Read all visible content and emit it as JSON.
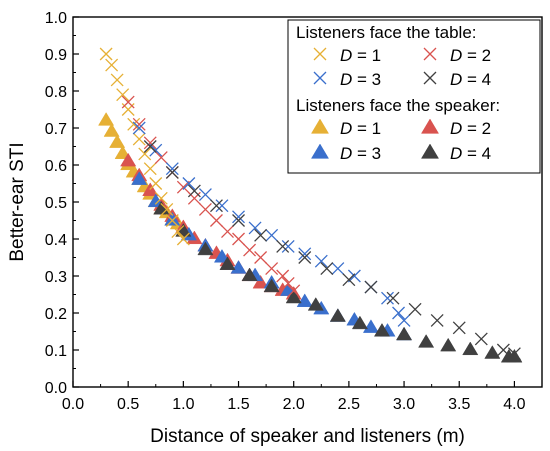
{
  "chart_data": {
    "type": "scatter",
    "xlabel": "Distance of speaker and listeners (m)",
    "ylabel": "Better-ear STI",
    "xlim": [
      0.0,
      4.25
    ],
    "ylim": [
      0.0,
      1.0
    ],
    "xticks": [
      "0.0",
      "0.5",
      "1.0",
      "1.5",
      "2.0",
      "2.5",
      "3.0",
      "3.5",
      "4.0"
    ],
    "yticks": [
      "0.0",
      "0.1",
      "0.2",
      "0.3",
      "0.4",
      "0.5",
      "0.6",
      "0.7",
      "0.8",
      "0.9",
      "1.0"
    ],
    "grid": false,
    "legend_position": "top-right",
    "legend": {
      "group1_title": "Listeners face the table:",
      "group2_title": "Listeners face the speaker:",
      "var": "D",
      "eq": " = "
    },
    "colors": {
      "D1": "#e6b035",
      "D2": "#d9534f",
      "D3": "#3a6fcc",
      "D4": "#404040"
    },
    "series": [
      {
        "name": "D = 1",
        "group": "Listeners face the table:",
        "marker": "x",
        "color": "#e6b035",
        "x": [
          0.3,
          0.35,
          0.4,
          0.45,
          0.5,
          0.55,
          0.6,
          0.65,
          0.7,
          0.75,
          0.8,
          0.85,
          0.9,
          0.95,
          1.0
        ],
        "y": [
          0.9,
          0.87,
          0.83,
          0.79,
          0.75,
          0.71,
          0.67,
          0.63,
          0.59,
          0.55,
          0.51,
          0.48,
          0.45,
          0.42,
          0.4
        ]
      },
      {
        "name": "D = 2",
        "group": "Listeners face the table:",
        "marker": "x",
        "color": "#d9534f",
        "x": [
          0.5,
          0.6,
          0.7,
          0.8,
          0.9,
          1.0,
          1.1,
          1.2,
          1.3,
          1.4,
          1.5,
          1.6,
          1.7,
          1.8,
          1.9,
          1.95,
          2.0
        ],
        "y": [
          0.77,
          0.71,
          0.66,
          0.62,
          0.58,
          0.54,
          0.51,
          0.48,
          0.45,
          0.42,
          0.4,
          0.37,
          0.35,
          0.32,
          0.3,
          0.28,
          0.26
        ]
      },
      {
        "name": "D = 3",
        "group": "Listeners face the table:",
        "marker": "x",
        "color": "#3a6fcc",
        "x": [
          0.6,
          0.75,
          0.9,
          1.05,
          1.2,
          1.35,
          1.5,
          1.65,
          1.8,
          1.95,
          2.1,
          2.25,
          2.4,
          2.55,
          2.7,
          2.85,
          2.95,
          3.0
        ],
        "y": [
          0.7,
          0.64,
          0.59,
          0.55,
          0.52,
          0.49,
          0.46,
          0.43,
          0.41,
          0.38,
          0.36,
          0.34,
          0.32,
          0.3,
          0.27,
          0.24,
          0.2,
          0.18
        ]
      },
      {
        "name": "D = 4",
        "group": "Listeners face the table:",
        "marker": "x",
        "color": "#404040",
        "x": [
          0.7,
          0.9,
          1.1,
          1.3,
          1.5,
          1.7,
          1.9,
          2.1,
          2.3,
          2.5,
          2.7,
          2.9,
          3.1,
          3.3,
          3.5,
          3.7,
          3.9,
          4.0
        ],
        "y": [
          0.65,
          0.58,
          0.53,
          0.49,
          0.45,
          0.41,
          0.38,
          0.35,
          0.32,
          0.29,
          0.27,
          0.24,
          0.21,
          0.18,
          0.16,
          0.13,
          0.1,
          0.09
        ]
      },
      {
        "name": "D = 1",
        "group": "Listeners face the speaker:",
        "marker": "triangle",
        "color": "#e6b035",
        "x": [
          0.3,
          0.35,
          0.4,
          0.45,
          0.5,
          0.55,
          0.6,
          0.65,
          0.7,
          0.75,
          0.8,
          0.85,
          0.9,
          0.95,
          1.0
        ],
        "y": [
          0.72,
          0.69,
          0.66,
          0.63,
          0.6,
          0.58,
          0.56,
          0.54,
          0.52,
          0.5,
          0.48,
          0.47,
          0.45,
          0.44,
          0.42
        ]
      },
      {
        "name": "D = 2",
        "group": "Listeners face the speaker:",
        "marker": "triangle",
        "color": "#d9534f",
        "x": [
          0.5,
          0.6,
          0.7,
          0.8,
          0.9,
          1.0,
          1.1,
          1.2,
          1.3,
          1.4,
          1.5,
          1.6,
          1.7,
          1.8,
          1.9,
          2.0
        ],
        "y": [
          0.61,
          0.57,
          0.53,
          0.49,
          0.46,
          0.43,
          0.4,
          0.38,
          0.36,
          0.34,
          0.32,
          0.3,
          0.28,
          0.27,
          0.26,
          0.25
        ]
      },
      {
        "name": "D = 3",
        "group": "Listeners face the speaker:",
        "marker": "triangle",
        "color": "#3a6fcc",
        "x": [
          0.6,
          0.75,
          0.9,
          1.05,
          1.2,
          1.35,
          1.5,
          1.65,
          1.8,
          1.95,
          2.1,
          2.25,
          2.4,
          2.55,
          2.7,
          2.85,
          3.0
        ],
        "y": [
          0.56,
          0.5,
          0.45,
          0.41,
          0.38,
          0.35,
          0.32,
          0.3,
          0.28,
          0.26,
          0.23,
          0.21,
          0.19,
          0.18,
          0.16,
          0.15,
          0.14
        ]
      },
      {
        "name": "D = 4",
        "group": "Listeners face the speaker:",
        "marker": "triangle",
        "color": "#404040",
        "x": [
          0.8,
          1.0,
          1.2,
          1.4,
          1.6,
          1.8,
          2.0,
          2.2,
          2.4,
          2.6,
          2.8,
          3.0,
          3.2,
          3.4,
          3.6,
          3.8,
          3.95,
          4.0
        ],
        "y": [
          0.48,
          0.42,
          0.37,
          0.33,
          0.3,
          0.27,
          0.24,
          0.22,
          0.19,
          0.17,
          0.15,
          0.14,
          0.12,
          0.11,
          0.1,
          0.09,
          0.08,
          0.08
        ]
      }
    ]
  }
}
